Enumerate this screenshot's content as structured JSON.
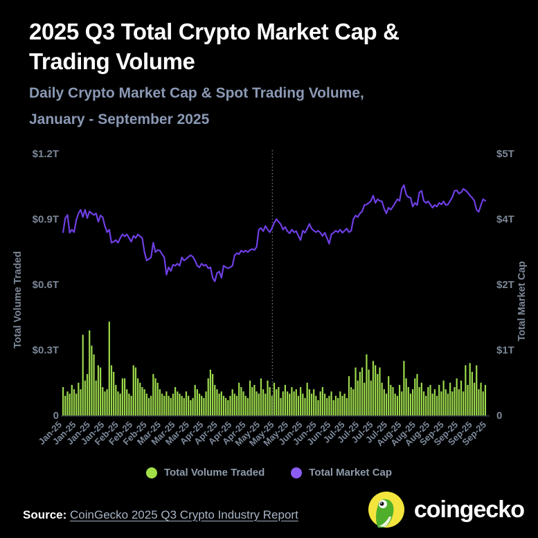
{
  "header": {
    "title_line1": "2025 Q3 Total Crypto Market Cap &",
    "title_line2": "Trading Volume",
    "subtitle_line1": "Daily Crypto Market Cap & Spot Trading Volume,",
    "subtitle_line2": "January - September 2025"
  },
  "chart_data": {
    "type": "bar+line dual-axis",
    "title": "2025 Q3 Total Crypto Market Cap & Trading Volume",
    "subtitle": "Daily Crypto Market Cap & Spot Trading Volume, January - September 2025",
    "left_axis": {
      "label": "Total Volume Traded",
      "tick_labels": [
        "0",
        "$0.3T",
        "$0.6T",
        "$0.9T",
        "$1.2T"
      ],
      "range_trillions_usd": [
        0,
        1.2
      ]
    },
    "right_axis": {
      "label": "Total Market Cap",
      "tick_labels": [
        "0",
        "$1T",
        "$2T",
        "$4T",
        "$5T"
      ],
      "range_trillions_usd": [
        0,
        5
      ]
    },
    "x_tick_labels": [
      "Jan-25",
      "Jan-25",
      "Jan-25",
      "Jan-25",
      "Feb-25",
      "Feb-25",
      "Feb-25",
      "Mar-25",
      "Mar-25",
      "Mar-25",
      "Apr-25",
      "Apr-25",
      "Apr-25",
      "Apr-25",
      "May-25",
      "May-25",
      "May-25",
      "Jun-25",
      "Jun-25",
      "Jun-25",
      "Jul-25",
      "Jul-25",
      "Jul-25",
      "Jul-25",
      "Aug-25",
      "Aug-25",
      "Aug-25",
      "Sep-25",
      "Sep-25",
      "Sep-25",
      "Sep-25"
    ],
    "divider_line_x_fraction": 0.495,
    "grid": false,
    "legend_position": "bottom-center",
    "series": [
      {
        "name": "Total Volume Traded",
        "type": "bar",
        "axis": "left",
        "color": "#9CD94C",
        "unit": "trillions USD per day",
        "values": [
          0.13,
          0.09,
          0.11,
          0.1,
          0.14,
          0.12,
          0.1,
          0.15,
          0.12,
          0.37,
          0.16,
          0.19,
          0.39,
          0.32,
          0.28,
          0.16,
          0.23,
          0.22,
          0.13,
          0.11,
          0.12,
          0.43,
          0.23,
          0.2,
          0.14,
          0.11,
          0.1,
          0.17,
          0.17,
          0.12,
          0.1,
          0.09,
          0.23,
          0.22,
          0.17,
          0.15,
          0.13,
          0.12,
          0.1,
          0.08,
          0.09,
          0.19,
          0.17,
          0.15,
          0.12,
          0.1,
          0.09,
          0.11,
          0.09,
          0.08,
          0.1,
          0.13,
          0.11,
          0.1,
          0.09,
          0.08,
          0.11,
          0.09,
          0.07,
          0.08,
          0.14,
          0.12,
          0.1,
          0.09,
          0.08,
          0.11,
          0.17,
          0.21,
          0.19,
          0.14,
          0.12,
          0.1,
          0.11,
          0.09,
          0.08,
          0.07,
          0.09,
          0.12,
          0.1,
          0.09,
          0.15,
          0.13,
          0.11,
          0.09,
          0.08,
          0.16,
          0.13,
          0.14,
          0.11,
          0.1,
          0.17,
          0.12,
          0.1,
          0.16,
          0.13,
          0.09,
          0.15,
          0.12,
          0.13,
          0.08,
          0.11,
          0.14,
          0.11,
          0.1,
          0.13,
          0.11,
          0.12,
          0.09,
          0.13,
          0.1,
          0.08,
          0.15,
          0.12,
          0.1,
          0.12,
          0.09,
          0.07,
          0.11,
          0.13,
          0.1,
          0.08,
          0.09,
          0.11,
          0.07,
          0.09,
          0.08,
          0.11,
          0.09,
          0.1,
          0.08,
          0.18,
          0.13,
          0.12,
          0.22,
          0.16,
          0.2,
          0.22,
          0.15,
          0.28,
          0.21,
          0.16,
          0.25,
          0.23,
          0.19,
          0.22,
          0.15,
          0.12,
          0.1,
          0.18,
          0.14,
          0.13,
          0.1,
          0.09,
          0.14,
          0.11,
          0.25,
          0.17,
          0.13,
          0.1,
          0.12,
          0.17,
          0.19,
          0.13,
          0.15,
          0.11,
          0.09,
          0.13,
          0.14,
          0.1,
          0.12,
          0.09,
          0.14,
          0.11,
          0.16,
          0.12,
          0.1,
          0.15,
          0.11,
          0.13,
          0.17,
          0.12,
          0.16,
          0.11,
          0.23,
          0.14,
          0.24,
          0.2,
          0.15,
          0.23,
          0.12,
          0.15,
          0.11,
          0.14
        ]
      },
      {
        "name": "Total Market Cap",
        "type": "line",
        "axis": "right",
        "color": "#6F3FE4",
        "unit": "trillions USD",
        "values": [
          3.5,
          3.77,
          3.83,
          3.49,
          3.55,
          3.5,
          3.73,
          3.86,
          3.93,
          3.79,
          3.93,
          3.77,
          3.9,
          3.86,
          3.83,
          3.86,
          3.7,
          3.82,
          3.79,
          3.62,
          3.5,
          3.55,
          3.3,
          3.32,
          3.35,
          3.3,
          3.39,
          3.46,
          3.42,
          3.46,
          3.39,
          3.32,
          3.43,
          3.39,
          3.46,
          3.42,
          3.39,
          3.12,
          2.96,
          2.99,
          3.02,
          3.3,
          3.12,
          3.16,
          3.15,
          3.08,
          3.02,
          2.69,
          2.83,
          2.76,
          2.88,
          2.86,
          2.9,
          2.86,
          3.02,
          2.96,
          2.99,
          3.03,
          3.06,
          3.03,
          2.96,
          2.86,
          2.83,
          2.9,
          2.86,
          2.88,
          2.81,
          2.83,
          2.63,
          2.56,
          2.72,
          2.75,
          2.63,
          2.86,
          2.83,
          2.81,
          2.83,
          2.86,
          3.06,
          3.1,
          3.08,
          3.15,
          3.12,
          3.15,
          3.12,
          3.16,
          3.18,
          3.16,
          3.22,
          3.55,
          3.58,
          3.52,
          3.62,
          3.55,
          3.5,
          3.58,
          3.68,
          3.75,
          3.7,
          3.65,
          3.55,
          3.6,
          3.52,
          3.48,
          3.55,
          3.5,
          3.52,
          3.43,
          3.35,
          3.53,
          3.49,
          3.57,
          3.66,
          3.57,
          3.53,
          3.5,
          3.53,
          3.49,
          3.43,
          3.49,
          3.39,
          3.28,
          3.46,
          3.49,
          3.53,
          3.5,
          3.55,
          3.49,
          3.53,
          3.57,
          3.5,
          3.53,
          3.75,
          3.82,
          3.79,
          3.86,
          3.9,
          4.02,
          4.03,
          4.06,
          4.1,
          4.2,
          4.06,
          4.13,
          4.1,
          4.09,
          3.95,
          3.86,
          3.97,
          3.93,
          3.99,
          4.06,
          4.13,
          4.1,
          4.33,
          4.4,
          4.22,
          4.17,
          4.16,
          3.99,
          4.06,
          4.02,
          4.26,
          4.29,
          4.1,
          4.06,
          4.09,
          4.03,
          3.97,
          4.02,
          3.99,
          4.06,
          4.03,
          4.09,
          4.02,
          4.03,
          4.1,
          4.17,
          4.29,
          4.3,
          4.24,
          4.26,
          4.33,
          4.3,
          4.26,
          4.2,
          4.16,
          4.1,
          3.93,
          3.89,
          4.02,
          4.13,
          4.1
        ]
      }
    ]
  },
  "legend": {
    "items": [
      {
        "label": "Total Volume Traded",
        "color": "#A3E048"
      },
      {
        "label": "Total Market Cap",
        "color": "#8B5CF6"
      }
    ]
  },
  "footer": {
    "source_label": "Source:",
    "source_link_text": "CoinGecko 2025 Q3 Crypto Industry Report",
    "brand_name": "coingecko"
  },
  "colors": {
    "background": "#000000",
    "title": "#FFFFFF",
    "subtitle": "#8B99B5",
    "axis_text": "#7C8797",
    "bar": "#9CD94C",
    "line": "#6F3FE4",
    "divider": "#737C88",
    "gecko_yellow": "#F4E53E",
    "gecko_green": "#4FAF2B"
  }
}
